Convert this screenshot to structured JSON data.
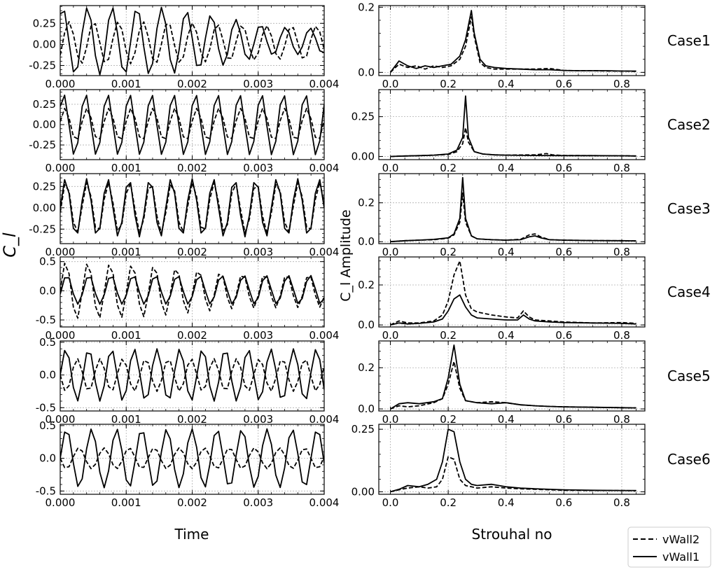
{
  "figure": {
    "left_ylabel": "C_l",
    "right_ylabel": "C_l Amplitude",
    "left_xlabel": "Time",
    "right_xlabel": "Strouhal no"
  },
  "legend": {
    "entries": [
      {
        "label": "vWall2",
        "style": "dashed"
      },
      {
        "label": "vWall1",
        "style": "solid"
      }
    ],
    "placement": "bottom-right"
  },
  "chart_data": [
    {
      "type": "line",
      "case": "Case1",
      "panel": "time",
      "x_ticks": [
        "0.000",
        "0.001",
        "0.002",
        "0.003",
        "0.004"
      ],
      "xlim": [
        0,
        0.004
      ],
      "y_ticks": [
        "0.25",
        "0.00",
        "-0.25"
      ],
      "ylim": [
        -0.37,
        0.46
      ],
      "series": [
        {
          "name": "vWall1",
          "amp": [
            0.4,
            0.4,
            0.4,
            0.3,
            0.17,
            0.15
          ],
          "period": 0.000375,
          "phase": 0.1,
          "offset": 0.04
        },
        {
          "name": "vWall2",
          "amp": [
            0.25,
            0.25,
            0.25,
            0.22,
            0.2,
            0.2
          ],
          "period": 0.000375,
          "phase": 0.35,
          "offset": 0.02
        }
      ]
    },
    {
      "type": "line",
      "case": "Case2",
      "panel": "time",
      "x_ticks": [
        "0.000",
        "0.001",
        "0.002",
        "0.003",
        "0.004"
      ],
      "xlim": [
        0,
        0.004
      ],
      "y_ticks": [
        "0.25",
        "0.00",
        "-0.25"
      ],
      "ylim": [
        -0.43,
        0.43
      ],
      "series": [
        {
          "name": "vWall1",
          "amp": [
            0.38,
            0.38
          ],
          "period": 0.000333,
          "phase": 0.15,
          "offset": 0.0
        },
        {
          "name": "vWall2",
          "amp": [
            0.2,
            0.2
          ],
          "period": 0.000333,
          "phase": 0.22,
          "offset": 0.0
        }
      ]
    },
    {
      "type": "line",
      "case": "Case3",
      "panel": "time",
      "x_ticks": [
        "0.000",
        "0.001",
        "0.002",
        "0.003",
        "0.004"
      ],
      "xlim": [
        0,
        0.004
      ],
      "y_ticks": [
        "0.25",
        "0.00",
        "-0.25"
      ],
      "ylim": [
        -0.42,
        0.4
      ],
      "series": [
        {
          "name": "vWall1",
          "amp": [
            0.34,
            0.34
          ],
          "period": 0.00032,
          "phase": 0.25,
          "offset": 0.0
        },
        {
          "name": "vWall2",
          "amp": [
            0.3,
            0.3
          ],
          "period": 0.00032,
          "phase": 0.28,
          "offset": 0.0
        }
      ]
    },
    {
      "type": "line",
      "case": "Case4",
      "panel": "time",
      "x_ticks": [
        "0.000",
        "0.001",
        "0.002",
        "0.003",
        "0.004"
      ],
      "xlim": [
        0,
        0.004
      ],
      "y_ticks": [
        "0.5",
        "0.0",
        "-0.5"
      ],
      "ylim": [
        -0.62,
        0.58
      ],
      "series": [
        {
          "name": "vWall1",
          "amp": [
            0.25,
            0.25
          ],
          "period": 0.000335,
          "phase": 0.3,
          "offset": 0.02
        },
        {
          "name": "vWall2",
          "amp": [
            0.5,
            0.45,
            0.3,
            0.28
          ],
          "period": 0.000335,
          "phase": 0.25,
          "offset": 0.0
        }
      ]
    },
    {
      "type": "line",
      "case": "Case5",
      "panel": "time",
      "x_ticks": [
        "0.000",
        "0.001",
        "0.002",
        "0.003",
        "0.004"
      ],
      "xlim": [
        0,
        0.004
      ],
      "y_ticks": [
        "0.5",
        "0.0",
        "-0.5"
      ],
      "ylim": [
        -0.55,
        0.52
      ],
      "series": [
        {
          "name": "vWall1",
          "amp": [
            0.4,
            0.4
          ],
          "period": 0.000345,
          "phase": 0.25,
          "offset": 0.0
        },
        {
          "name": "vWall2",
          "amp": [
            0.25,
            0.25
          ],
          "period": 0.000345,
          "phase": 0.75,
          "offset": 0.0
        }
      ]
    },
    {
      "type": "line",
      "case": "Case6",
      "panel": "time",
      "x_ticks": [
        "0.000",
        "0.001",
        "0.002",
        "0.003",
        "0.004"
      ],
      "xlim": [
        0,
        0.004
      ],
      "y_ticks": [
        "0.5",
        "0.0",
        "-0.5"
      ],
      "ylim": [
        -0.55,
        0.52
      ],
      "series": [
        {
          "name": "vWall1",
          "amp": [
            0.45,
            0.45
          ],
          "period": 0.00038,
          "phase": 0.25,
          "offset": 0.0
        },
        {
          "name": "vWall2",
          "amp": [
            0.16,
            0.16
          ],
          "period": 0.00038,
          "phase": 0.75,
          "offset": 0.0
        }
      ]
    },
    {
      "type": "line",
      "case": "Case1",
      "panel": "fft",
      "x_ticks": [
        "0.0",
        "0.2",
        "0.4",
        "0.6",
        "0.8"
      ],
      "xlim": [
        -0.04,
        0.88
      ],
      "y_ticks": [
        "0.0",
        "0.2"
      ],
      "ylim": [
        -0.01,
        0.205
      ],
      "series": [
        {
          "name": "vWall1",
          "x": [
            0.0,
            0.03,
            0.06,
            0.09,
            0.12,
            0.15,
            0.18,
            0.21,
            0.24,
            0.26,
            0.28,
            0.29,
            0.31,
            0.33,
            0.36,
            0.4,
            0.45,
            0.5,
            0.55,
            0.6,
            0.65,
            0.7,
            0.75,
            0.8,
            0.85
          ],
          "y": [
            0.0,
            0.035,
            0.02,
            0.012,
            0.02,
            0.015,
            0.02,
            0.025,
            0.05,
            0.1,
            0.19,
            0.12,
            0.04,
            0.02,
            0.015,
            0.012,
            0.01,
            0.008,
            0.008,
            0.006,
            0.005,
            0.005,
            0.005,
            0.004,
            0.004
          ]
        },
        {
          "name": "vWall2",
          "x": [
            0.0,
            0.03,
            0.06,
            0.09,
            0.12,
            0.15,
            0.18,
            0.21,
            0.24,
            0.26,
            0.28,
            0.29,
            0.31,
            0.33,
            0.36,
            0.4,
            0.45,
            0.5,
            0.55,
            0.6,
            0.65,
            0.7,
            0.75,
            0.8,
            0.85
          ],
          "y": [
            0.0,
            0.025,
            0.015,
            0.02,
            0.01,
            0.02,
            0.015,
            0.02,
            0.04,
            0.08,
            0.17,
            0.11,
            0.03,
            0.015,
            0.01,
            0.01,
            0.01,
            0.01,
            0.012,
            0.006,
            0.005,
            0.005,
            0.004,
            0.004,
            0.003
          ]
        }
      ]
    },
    {
      "type": "line",
      "case": "Case2",
      "panel": "fft",
      "x_ticks": [
        "0.0",
        "0.2",
        "0.4",
        "0.6",
        "0.8"
      ],
      "xlim": [
        -0.04,
        0.88
      ],
      "y_ticks": [
        "0.00",
        "0.25"
      ],
      "ylim": [
        -0.02,
        0.42
      ],
      "series": [
        {
          "name": "vWall1",
          "x": [
            0.0,
            0.05,
            0.1,
            0.15,
            0.2,
            0.23,
            0.25,
            0.26,
            0.27,
            0.29,
            0.32,
            0.36,
            0.4,
            0.5,
            0.6,
            0.7,
            0.8,
            0.85
          ],
          "y": [
            0.0,
            0.003,
            0.005,
            0.008,
            0.015,
            0.04,
            0.12,
            0.38,
            0.12,
            0.03,
            0.015,
            0.01,
            0.008,
            0.006,
            0.005,
            0.005,
            0.004,
            0.003
          ]
        },
        {
          "name": "vWall2",
          "x": [
            0.0,
            0.05,
            0.1,
            0.15,
            0.2,
            0.23,
            0.25,
            0.26,
            0.27,
            0.29,
            0.32,
            0.36,
            0.4,
            0.5,
            0.54,
            0.56,
            0.6,
            0.7,
            0.8,
            0.85
          ],
          "y": [
            0.0,
            0.003,
            0.005,
            0.008,
            0.012,
            0.03,
            0.08,
            0.18,
            0.09,
            0.03,
            0.015,
            0.01,
            0.008,
            0.01,
            0.018,
            0.01,
            0.006,
            0.005,
            0.004,
            0.003
          ]
        }
      ]
    },
    {
      "type": "line",
      "case": "Case3",
      "panel": "fft",
      "x_ticks": [
        "0.0",
        "0.2",
        "0.4",
        "0.6",
        "0.8"
      ],
      "xlim": [
        -0.04,
        0.88
      ],
      "y_ticks": [
        "0.0",
        "0.2"
      ],
      "ylim": [
        -0.01,
        0.35
      ],
      "series": [
        {
          "name": "vWall1",
          "x": [
            0.0,
            0.05,
            0.1,
            0.15,
            0.2,
            0.22,
            0.24,
            0.25,
            0.26,
            0.28,
            0.3,
            0.35,
            0.4,
            0.45,
            0.48,
            0.5,
            0.52,
            0.55,
            0.6,
            0.7,
            0.8,
            0.85
          ],
          "y": [
            0.0,
            0.005,
            0.008,
            0.012,
            0.02,
            0.04,
            0.12,
            0.33,
            0.12,
            0.03,
            0.015,
            0.01,
            0.008,
            0.01,
            0.025,
            0.03,
            0.02,
            0.01,
            0.008,
            0.006,
            0.005,
            0.004
          ]
        },
        {
          "name": "vWall2",
          "x": [
            0.0,
            0.05,
            0.1,
            0.15,
            0.2,
            0.22,
            0.24,
            0.25,
            0.26,
            0.28,
            0.3,
            0.35,
            0.4,
            0.45,
            0.48,
            0.5,
            0.52,
            0.55,
            0.6,
            0.7,
            0.8,
            0.85
          ],
          "y": [
            0.0,
            0.005,
            0.008,
            0.01,
            0.018,
            0.035,
            0.1,
            0.25,
            0.1,
            0.03,
            0.015,
            0.01,
            0.008,
            0.012,
            0.035,
            0.04,
            0.025,
            0.01,
            0.008,
            0.006,
            0.005,
            0.004
          ]
        }
      ]
    },
    {
      "type": "line",
      "case": "Case4",
      "panel": "fft",
      "x_ticks": [
        "0.0",
        "0.2",
        "0.4",
        "0.6",
        "0.8"
      ],
      "xlim": [
        -0.04,
        0.88
      ],
      "y_ticks": [
        "0.0",
        "0.2"
      ],
      "ylim": [
        -0.01,
        0.34
      ],
      "series": [
        {
          "name": "vWall1",
          "x": [
            0.0,
            0.03,
            0.06,
            0.1,
            0.15,
            0.18,
            0.2,
            0.22,
            0.24,
            0.26,
            0.28,
            0.3,
            0.35,
            0.4,
            0.44,
            0.46,
            0.48,
            0.5,
            0.55,
            0.6,
            0.7,
            0.8,
            0.85
          ],
          "y": [
            0.0,
            0.01,
            0.005,
            0.008,
            0.015,
            0.03,
            0.07,
            0.13,
            0.15,
            0.09,
            0.05,
            0.035,
            0.03,
            0.025,
            0.025,
            0.05,
            0.03,
            0.02,
            0.015,
            0.012,
            0.01,
            0.008,
            0.005
          ]
        },
        {
          "name": "vWall2",
          "x": [
            0.0,
            0.03,
            0.06,
            0.1,
            0.15,
            0.18,
            0.2,
            0.22,
            0.24,
            0.26,
            0.28,
            0.3,
            0.35,
            0.4,
            0.44,
            0.46,
            0.48,
            0.5,
            0.55,
            0.6,
            0.7,
            0.8,
            0.85
          ],
          "y": [
            0.0,
            0.02,
            0.01,
            0.01,
            0.02,
            0.05,
            0.12,
            0.25,
            0.32,
            0.15,
            0.08,
            0.065,
            0.05,
            0.04,
            0.035,
            0.07,
            0.04,
            0.025,
            0.02,
            0.015,
            0.01,
            0.012,
            0.008
          ]
        }
      ]
    },
    {
      "type": "line",
      "case": "Case5",
      "panel": "fft",
      "x_ticks": [
        "0.0",
        "0.2",
        "0.4",
        "0.6",
        "0.8"
      ],
      "xlim": [
        -0.04,
        0.88
      ],
      "y_ticks": [
        "0.0",
        "0.2"
      ],
      "ylim": [
        -0.01,
        0.33
      ],
      "series": [
        {
          "name": "vWall1",
          "x": [
            0.0,
            0.03,
            0.06,
            0.1,
            0.15,
            0.18,
            0.2,
            0.22,
            0.24,
            0.26,
            0.3,
            0.35,
            0.4,
            0.45,
            0.5,
            0.55,
            0.6,
            0.7,
            0.8,
            0.85
          ],
          "y": [
            0.0,
            0.025,
            0.03,
            0.025,
            0.035,
            0.05,
            0.15,
            0.31,
            0.12,
            0.04,
            0.03,
            0.025,
            0.03,
            0.02,
            0.015,
            0.012,
            0.01,
            0.008,
            0.006,
            0.005
          ]
        },
        {
          "name": "vWall2",
          "x": [
            0.0,
            0.03,
            0.06,
            0.1,
            0.15,
            0.18,
            0.2,
            0.22,
            0.24,
            0.26,
            0.3,
            0.35,
            0.4,
            0.45,
            0.5,
            0.55,
            0.6,
            0.7,
            0.8,
            0.85
          ],
          "y": [
            0.0,
            0.015,
            0.01,
            0.015,
            0.03,
            0.05,
            0.12,
            0.23,
            0.1,
            0.04,
            0.03,
            0.035,
            0.03,
            0.02,
            0.015,
            0.012,
            0.01,
            0.008,
            0.006,
            0.005
          ]
        }
      ]
    },
    {
      "type": "line",
      "case": "Case6",
      "panel": "fft",
      "x_ticks": [
        "0.0",
        "0.2",
        "0.4",
        "0.6",
        "0.8"
      ],
      "xlim": [
        -0.04,
        0.88
      ],
      "y_ticks": [
        "0.00",
        "0.25"
      ],
      "ylim": [
        -0.01,
        0.27
      ],
      "series": [
        {
          "name": "vWall1",
          "x": [
            0.0,
            0.03,
            0.06,
            0.1,
            0.13,
            0.16,
            0.18,
            0.2,
            0.22,
            0.24,
            0.26,
            0.28,
            0.3,
            0.35,
            0.4,
            0.45,
            0.5,
            0.55,
            0.6,
            0.7,
            0.8,
            0.85
          ],
          "y": [
            0.0,
            0.01,
            0.025,
            0.02,
            0.03,
            0.05,
            0.12,
            0.25,
            0.24,
            0.12,
            0.05,
            0.03,
            0.025,
            0.03,
            0.02,
            0.015,
            0.012,
            0.01,
            0.008,
            0.006,
            0.005,
            0.005
          ]
        },
        {
          "name": "vWall2",
          "x": [
            0.0,
            0.03,
            0.06,
            0.1,
            0.13,
            0.16,
            0.18,
            0.2,
            0.22,
            0.24,
            0.26,
            0.28,
            0.3,
            0.35,
            0.4,
            0.45,
            0.5,
            0.55,
            0.6,
            0.7,
            0.8,
            0.85
          ],
          "y": [
            0.0,
            0.008,
            0.015,
            0.02,
            0.015,
            0.02,
            0.05,
            0.14,
            0.13,
            0.05,
            0.025,
            0.02,
            0.015,
            0.02,
            0.015,
            0.012,
            0.01,
            0.008,
            0.006,
            0.005,
            0.005,
            0.004
          ]
        }
      ]
    }
  ]
}
